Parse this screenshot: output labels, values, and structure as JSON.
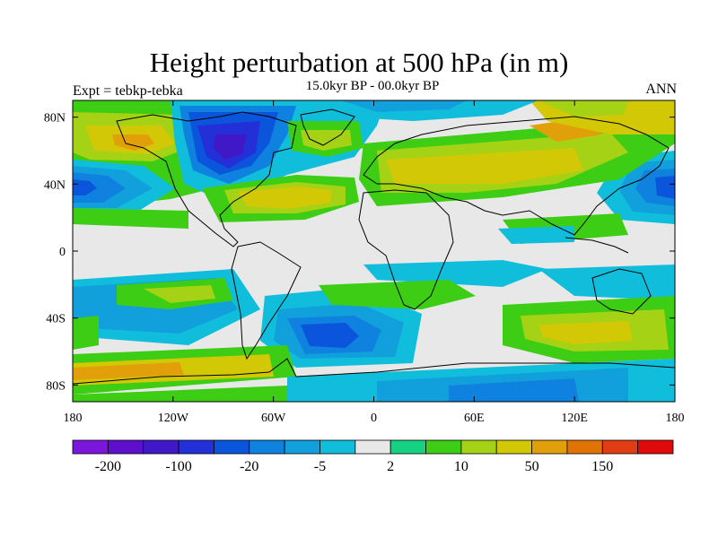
{
  "map": {
    "title": "Height perturbation at 500 hPa (in m)",
    "subtitle": "15.0kyr BP - 00.0kyr BP",
    "experiment": "Expt = tebkp-tebka",
    "season": "ANN",
    "projection": "cylindrical-equidistant",
    "lon_range": [
      -180,
      180
    ],
    "lat_range": [
      -90,
      90
    ],
    "lat_ticks": [
      {
        "value": 80,
        "label": "80N"
      },
      {
        "value": 40,
        "label": "40N"
      },
      {
        "value": 0,
        "label": "0"
      },
      {
        "value": -40,
        "label": "40S"
      },
      {
        "value": -80,
        "label": "80S"
      }
    ],
    "lon_ticks": [
      {
        "value": -180,
        "label": "180"
      },
      {
        "value": -120,
        "label": "120W"
      },
      {
        "value": -60,
        "label": "60W"
      },
      {
        "value": 0,
        "label": "0"
      },
      {
        "value": 60,
        "label": "60E"
      },
      {
        "value": 120,
        "label": "120E"
      },
      {
        "value": 180,
        "label": "180"
      }
    ]
  },
  "colorbar": {
    "colors": [
      "#7d16dd",
      "#5e0fcd",
      "#4118c8",
      "#2330d8",
      "#0a55dc",
      "#0f82e0",
      "#11a0dc",
      "#10bedc",
      "#e8e8e8",
      "#14d282",
      "#3ccd14",
      "#a5d214",
      "#d2c805",
      "#e1a00a",
      "#e17305",
      "#e13c14",
      "#e10a0a"
    ],
    "labels": [
      {
        "boundary": 1,
        "text": "-200"
      },
      {
        "boundary": 3,
        "text": "-100"
      },
      {
        "boundary": 5,
        "text": "-20"
      },
      {
        "boundary": 7,
        "text": "-5"
      },
      {
        "boundary": 9,
        "text": "2"
      },
      {
        "boundary": 11,
        "text": "10"
      },
      {
        "boundary": 13,
        "text": "50"
      },
      {
        "boundary": 15,
        "text": "150"
      }
    ]
  },
  "colors": {
    "background_neutral": "#e8e8e8",
    "coastline": "#000000"
  }
}
